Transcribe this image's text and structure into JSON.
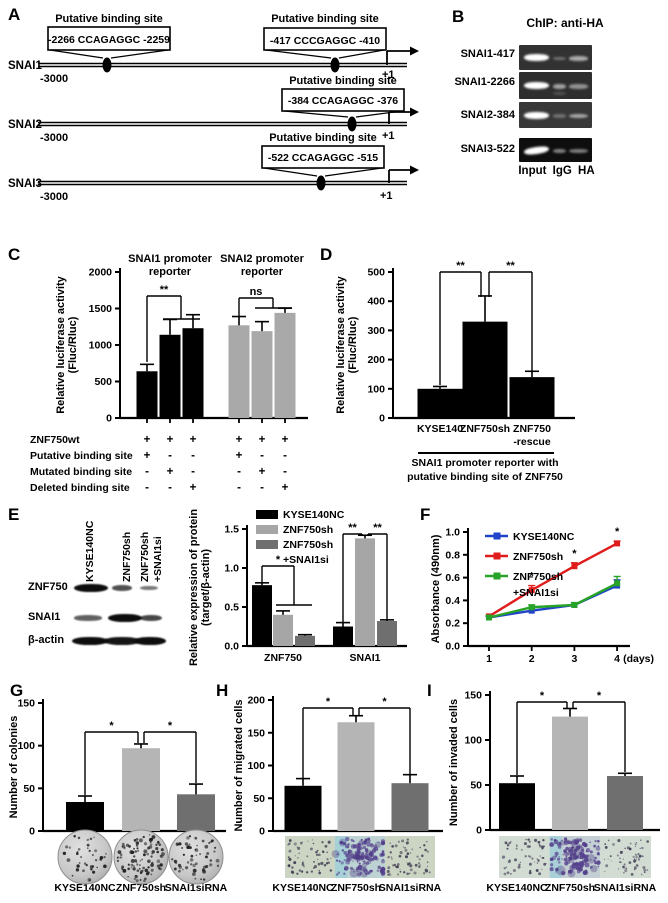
{
  "panels": {
    "a": "A",
    "b": "B",
    "c": "C",
    "d": "D",
    "e": "E",
    "f": "F",
    "g": "G",
    "h": "H",
    "i": "I"
  },
  "panelA": {
    "genes": [
      {
        "name": "SNAI1",
        "start": "-3000",
        "tss": "+1",
        "sites": [
          {
            "title": "Putative binding site",
            "seq": "-2266 CCAGAGGC -2259"
          },
          {
            "title": "Putative binding site",
            "seq": "-417 CCCGAGGC -410"
          }
        ]
      },
      {
        "name": "SNAI2",
        "start": "-3000",
        "tss": "+1",
        "sites": [
          {
            "title": "Putative binding site",
            "seq": "-384 CCAGAGGC -376"
          }
        ]
      },
      {
        "name": "SNAI3",
        "start": "-3000",
        "tss": "+1",
        "sites": [
          {
            "title": "Putative binding site",
            "seq": "-522 CCAGAGGC -515"
          }
        ]
      }
    ]
  },
  "panelB": {
    "title": "ChIP: anti-HA",
    "footer": "Input IgG HA",
    "rows": [
      {
        "label": "SNAI1-417",
        "lanes": [
          1,
          0.08,
          0.45
        ]
      },
      {
        "label": "SNAI1-2266",
        "lanes": [
          1,
          0.4,
          0.3
        ]
      },
      {
        "label": "SNAI2-384",
        "lanes": [
          1,
          0.05,
          0.4
        ]
      },
      {
        "label": "SNAI3-522",
        "lanes": [
          1,
          0.3,
          0.28
        ]
      }
    ]
  },
  "panelE_blot": {
    "lanes": [
      "KYSE140NC",
      "ZNF750sh",
      "ZNF750sh\n+SNAI1si"
    ],
    "rows": [
      {
        "label": "ZNF750",
        "bands": [
          1,
          0.6,
          0.35
        ]
      },
      {
        "label": "SNAI1",
        "bands": [
          0.5,
          1,
          0.65
        ]
      },
      {
        "label": "β-actin",
        "bands": [
          1,
          0.95,
          1
        ]
      }
    ]
  },
  "chart_data": [
    {
      "id": "C",
      "type": "bar",
      "ylabel": "Relative luciferase activity\n(Fluc/Rluc)",
      "ylim": [
        0,
        2000
      ],
      "yticks": [
        "0",
        "500",
        "1000",
        "1500",
        "2000"
      ],
      "groups": [
        {
          "title": "SNAI1 promoter\nreporter",
          "color": "#000000",
          "values": [
            640,
            1140,
            1230
          ],
          "errors": [
            95,
            210,
            185
          ]
        },
        {
          "title": "SNAI2 promoter\nreporter",
          "color": "#a9a9a9",
          "values": [
            1270,
            1190,
            1440
          ],
          "errors": [
            120,
            130,
            65
          ]
        }
      ],
      "sig": [
        {
          "label": "**"
        },
        {
          "label": "ns"
        }
      ],
      "matrix": {
        "rows": [
          {
            "label": "ZNF750wt",
            "values": [
              "+",
              "+",
              "+",
              "+",
              "+",
              "+"
            ]
          },
          {
            "label": "Putative binding site",
            "values": [
              "+",
              "-",
              "-",
              "+",
              "-",
              "-"
            ]
          },
          {
            "label": "Mutated binding site",
            "values": [
              "-",
              "+",
              "-",
              "-",
              "+",
              "-"
            ]
          },
          {
            "label": "Deleted binding site",
            "values": [
              "-",
              "-",
              "+",
              "-",
              "-",
              "+"
            ]
          }
        ]
      }
    },
    {
      "id": "D",
      "type": "bar",
      "ylabel": "Relative luciferase activity\n(Fluc/Rluc)",
      "ylim": [
        0,
        500
      ],
      "yticks": [
        "0",
        "100",
        "200",
        "300",
        "400",
        "500"
      ],
      "categories": [
        "KYSE140",
        "ZNF750sh",
        "ZNF750\n-rescue"
      ],
      "values": [
        100,
        330,
        140
      ],
      "errors": [
        8,
        88,
        20
      ],
      "bar_color": "#000000",
      "sig": [
        {
          "label": "**"
        },
        {
          "label": "**"
        }
      ],
      "caption": "SNAI1 promoter reporter with\nputative binding site of ZNF750"
    },
    {
      "id": "E",
      "type": "bar",
      "ylabel": "Relative expression of protein\n(target/β-actin)",
      "ylim": [
        0,
        1.5
      ],
      "yticks": [
        "0.0",
        "0.5",
        "1.0",
        "1.5"
      ],
      "categories": [
        "ZNF750",
        "SNAI1"
      ],
      "legend": true,
      "series": [
        {
          "name": "KYSE140NC",
          "color": "#000000",
          "values": [
            0.78,
            0.25
          ],
          "errors": [
            0.03,
            0.05
          ]
        },
        {
          "name": "ZNF750sh",
          "color": "#a6a6a6",
          "values": [
            0.4,
            1.38
          ],
          "errors": [
            0.05,
            0.04
          ]
        },
        {
          "name": "ZNF750sh\n+SNAI1si",
          "color": "#6f6f6f",
          "values": [
            0.13,
            0.32
          ],
          "errors": [
            0.015,
            0.015
          ]
        }
      ],
      "sig": [
        {
          "label": "*"
        },
        {
          "label": "**"
        },
        {
          "label": "**"
        }
      ]
    },
    {
      "id": "F",
      "type": "line",
      "ylabel": "Absorbance (490nm)",
      "ylim": [
        0,
        1.0
      ],
      "yticks": [
        "0.0",
        "0.2",
        "0.4",
        "0.6",
        "0.8",
        "1.0"
      ],
      "x": [
        "1",
        "2",
        "3",
        "4"
      ],
      "xsuffix": "(days)",
      "series": [
        {
          "name": "KYSE140NC",
          "color": "#2143c7",
          "values": [
            0.25,
            0.31,
            0.36,
            0.53
          ],
          "errors": [
            0.01,
            0.02,
            0.02,
            0.05
          ]
        },
        {
          "name": "ZNF750sh",
          "color": "#e01b1b",
          "values": [
            0.26,
            0.49,
            0.7,
            0.9
          ],
          "errors": [
            0.01,
            0.04,
            0.03,
            0.02
          ]
        },
        {
          "name": "ZNF750sh\n+SNAI1si",
          "color": "#27a327",
          "values": [
            0.25,
            0.34,
            0.36,
            0.55
          ],
          "errors": [
            0.02,
            0.02,
            0.02,
            0.06
          ]
        }
      ],
      "sig_points": [
        {
          "series": 1,
          "index": 1,
          "label": "*"
        },
        {
          "series": 1,
          "index": 2,
          "label": "*"
        },
        {
          "series": 1,
          "index": 3,
          "label": "*"
        }
      ]
    },
    {
      "id": "G",
      "type": "bar",
      "ylabel": "Number of colonies",
      "ylim": [
        0,
        150
      ],
      "yticks": [
        "0",
        "50",
        "100",
        "150"
      ],
      "categories": [
        "KYSE140NC",
        "ZNF750sh",
        "SNAI1siRNA"
      ],
      "values": [
        34,
        97,
        43
      ],
      "errors": [
        7,
        5,
        12
      ],
      "colors": [
        "#000000",
        "#b5b5b5",
        "#6f6f6f"
      ],
      "sig": [
        {
          "label": "*"
        },
        {
          "label": "*"
        }
      ]
    },
    {
      "id": "H",
      "type": "bar",
      "ylabel": "Number of migrated cells",
      "ylim": [
        0,
        200
      ],
      "yticks": [
        "0",
        "50",
        "100",
        "150",
        "200"
      ],
      "categories": [
        "KYSE140NC",
        "ZNF750sh",
        "SNAI1siRNA"
      ],
      "values": [
        69,
        166,
        73
      ],
      "errors": [
        11,
        10,
        13
      ],
      "colors": [
        "#000000",
        "#b5b5b5",
        "#6f6f6f"
      ],
      "sig": [
        {
          "label": "*"
        },
        {
          "label": "*"
        }
      ]
    },
    {
      "id": "I",
      "type": "bar",
      "ylabel": "Number of invaded cells",
      "ylim": [
        0,
        150
      ],
      "yticks": [
        "0",
        "50",
        "100",
        "150"
      ],
      "categories": [
        "KYSE140NC",
        "ZNF750sh",
        "SNAI1siRNA"
      ],
      "values": [
        52,
        126,
        60
      ],
      "errors": [
        8,
        9,
        3
      ],
      "colors": [
        "#000000",
        "#b5b5b5",
        "#6f6f6f"
      ],
      "sig": [
        {
          "label": "*"
        },
        {
          "label": "*"
        }
      ]
    }
  ]
}
